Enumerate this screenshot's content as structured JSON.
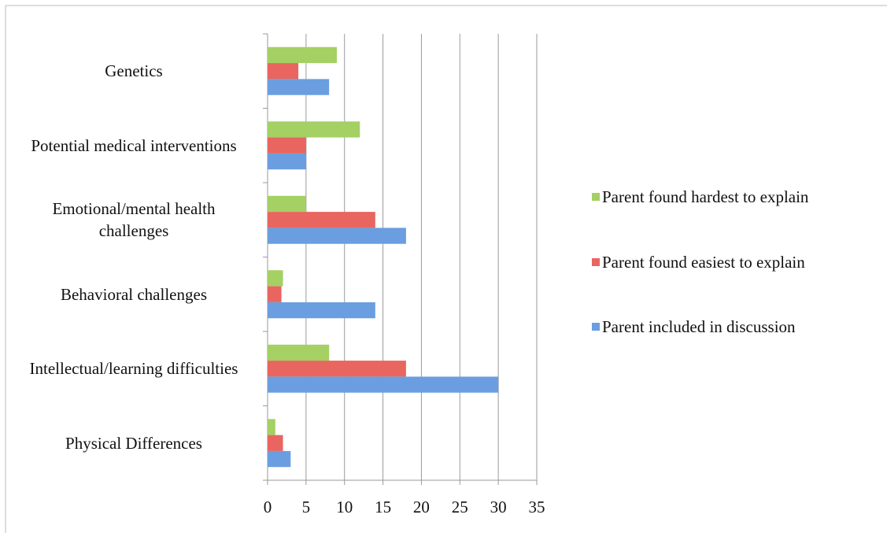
{
  "chart_data": {
    "type": "hbar",
    "categories": [
      "Physical Differences",
      "Intellectual/learning difficulties",
      "Behavioral challenges",
      "Emotional/mental health challenges",
      "Potential medical interventions",
      "Genetics"
    ],
    "series": [
      {
        "name": "Parent found hardest to explain",
        "color": "#a4d064",
        "values": [
          1,
          8,
          2,
          5,
          12,
          9
        ]
      },
      {
        "name": "Parent found easiest to explain",
        "color": "#e8665f",
        "values": [
          2,
          18,
          1.8,
          14,
          5,
          4
        ]
      },
      {
        "name": "Parent included in discussion",
        "color": "#6a9ee0",
        "values": [
          3,
          30,
          14,
          18,
          5,
          8
        ]
      }
    ],
    "xlim": [
      0,
      35
    ],
    "xticks": [
      0,
      5,
      10,
      15,
      20,
      25,
      30,
      35
    ],
    "grid": true,
    "legend": "right"
  }
}
